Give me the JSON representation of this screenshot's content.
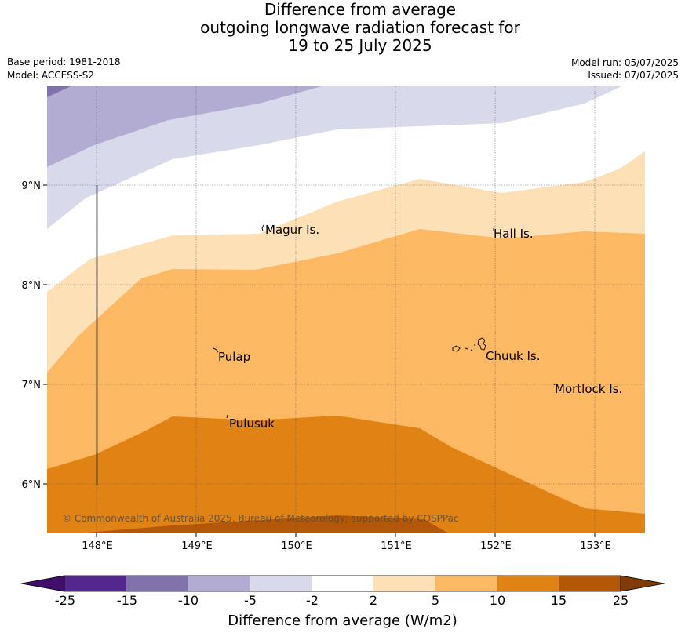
{
  "title": {
    "line1": "Difference from average",
    "line2": "outgoing longwave radiation forecast for",
    "line3": "19 to 25 July 2025"
  },
  "meta": {
    "base_period": "Base period: 1981-2018",
    "model": "Model: ACCESS-S2",
    "model_run": "Model run: 05/07/2025",
    "issued": "Issued: 07/07/2025"
  },
  "map": {
    "lon_range": [
      147.5,
      153.5
    ],
    "lat_range": [
      5.5,
      9.85
    ],
    "lon_ticks": [
      "148°E",
      "149°E",
      "150°E",
      "151°E",
      "152°E",
      "153°E"
    ],
    "lat_ticks": [
      "9°N",
      "8°N",
      "7°N",
      "6°N"
    ],
    "grid": true,
    "places": [
      {
        "name": "Magur Is.",
        "lon": 149.7,
        "lat": 8.55
      },
      {
        "name": "Hall Is.",
        "lon": 151.95,
        "lat": 8.5
      },
      {
        "name": "Pulap",
        "lon": 149.2,
        "lat": 7.25
      },
      {
        "name": "Chuuk Is.",
        "lon": 151.9,
        "lat": 7.25
      },
      {
        "name": "Mortlock Is.",
        "lon": 152.6,
        "lat": 6.92
      },
      {
        "name": "Pulusuk",
        "lon": 149.3,
        "lat": 6.57
      }
    ],
    "copyright": "© Commonwealth of Australia 2025, Bureau of Meteorology; supported by COSPPac"
  },
  "colorbar": {
    "title": "Difference from average (W/m2)",
    "labels": [
      "-25",
      "-15",
      "-10",
      "-5",
      "-2",
      "2",
      "5",
      "10",
      "15",
      "25"
    ],
    "colors": [
      "#3f0f6b",
      "#54278f",
      "#8073ac",
      "#b2abd2",
      "#d8daeb",
      "#ffffff",
      "#fee0b6",
      "#fdb863",
      "#e08214",
      "#b35806",
      "#7f3b08"
    ]
  }
}
